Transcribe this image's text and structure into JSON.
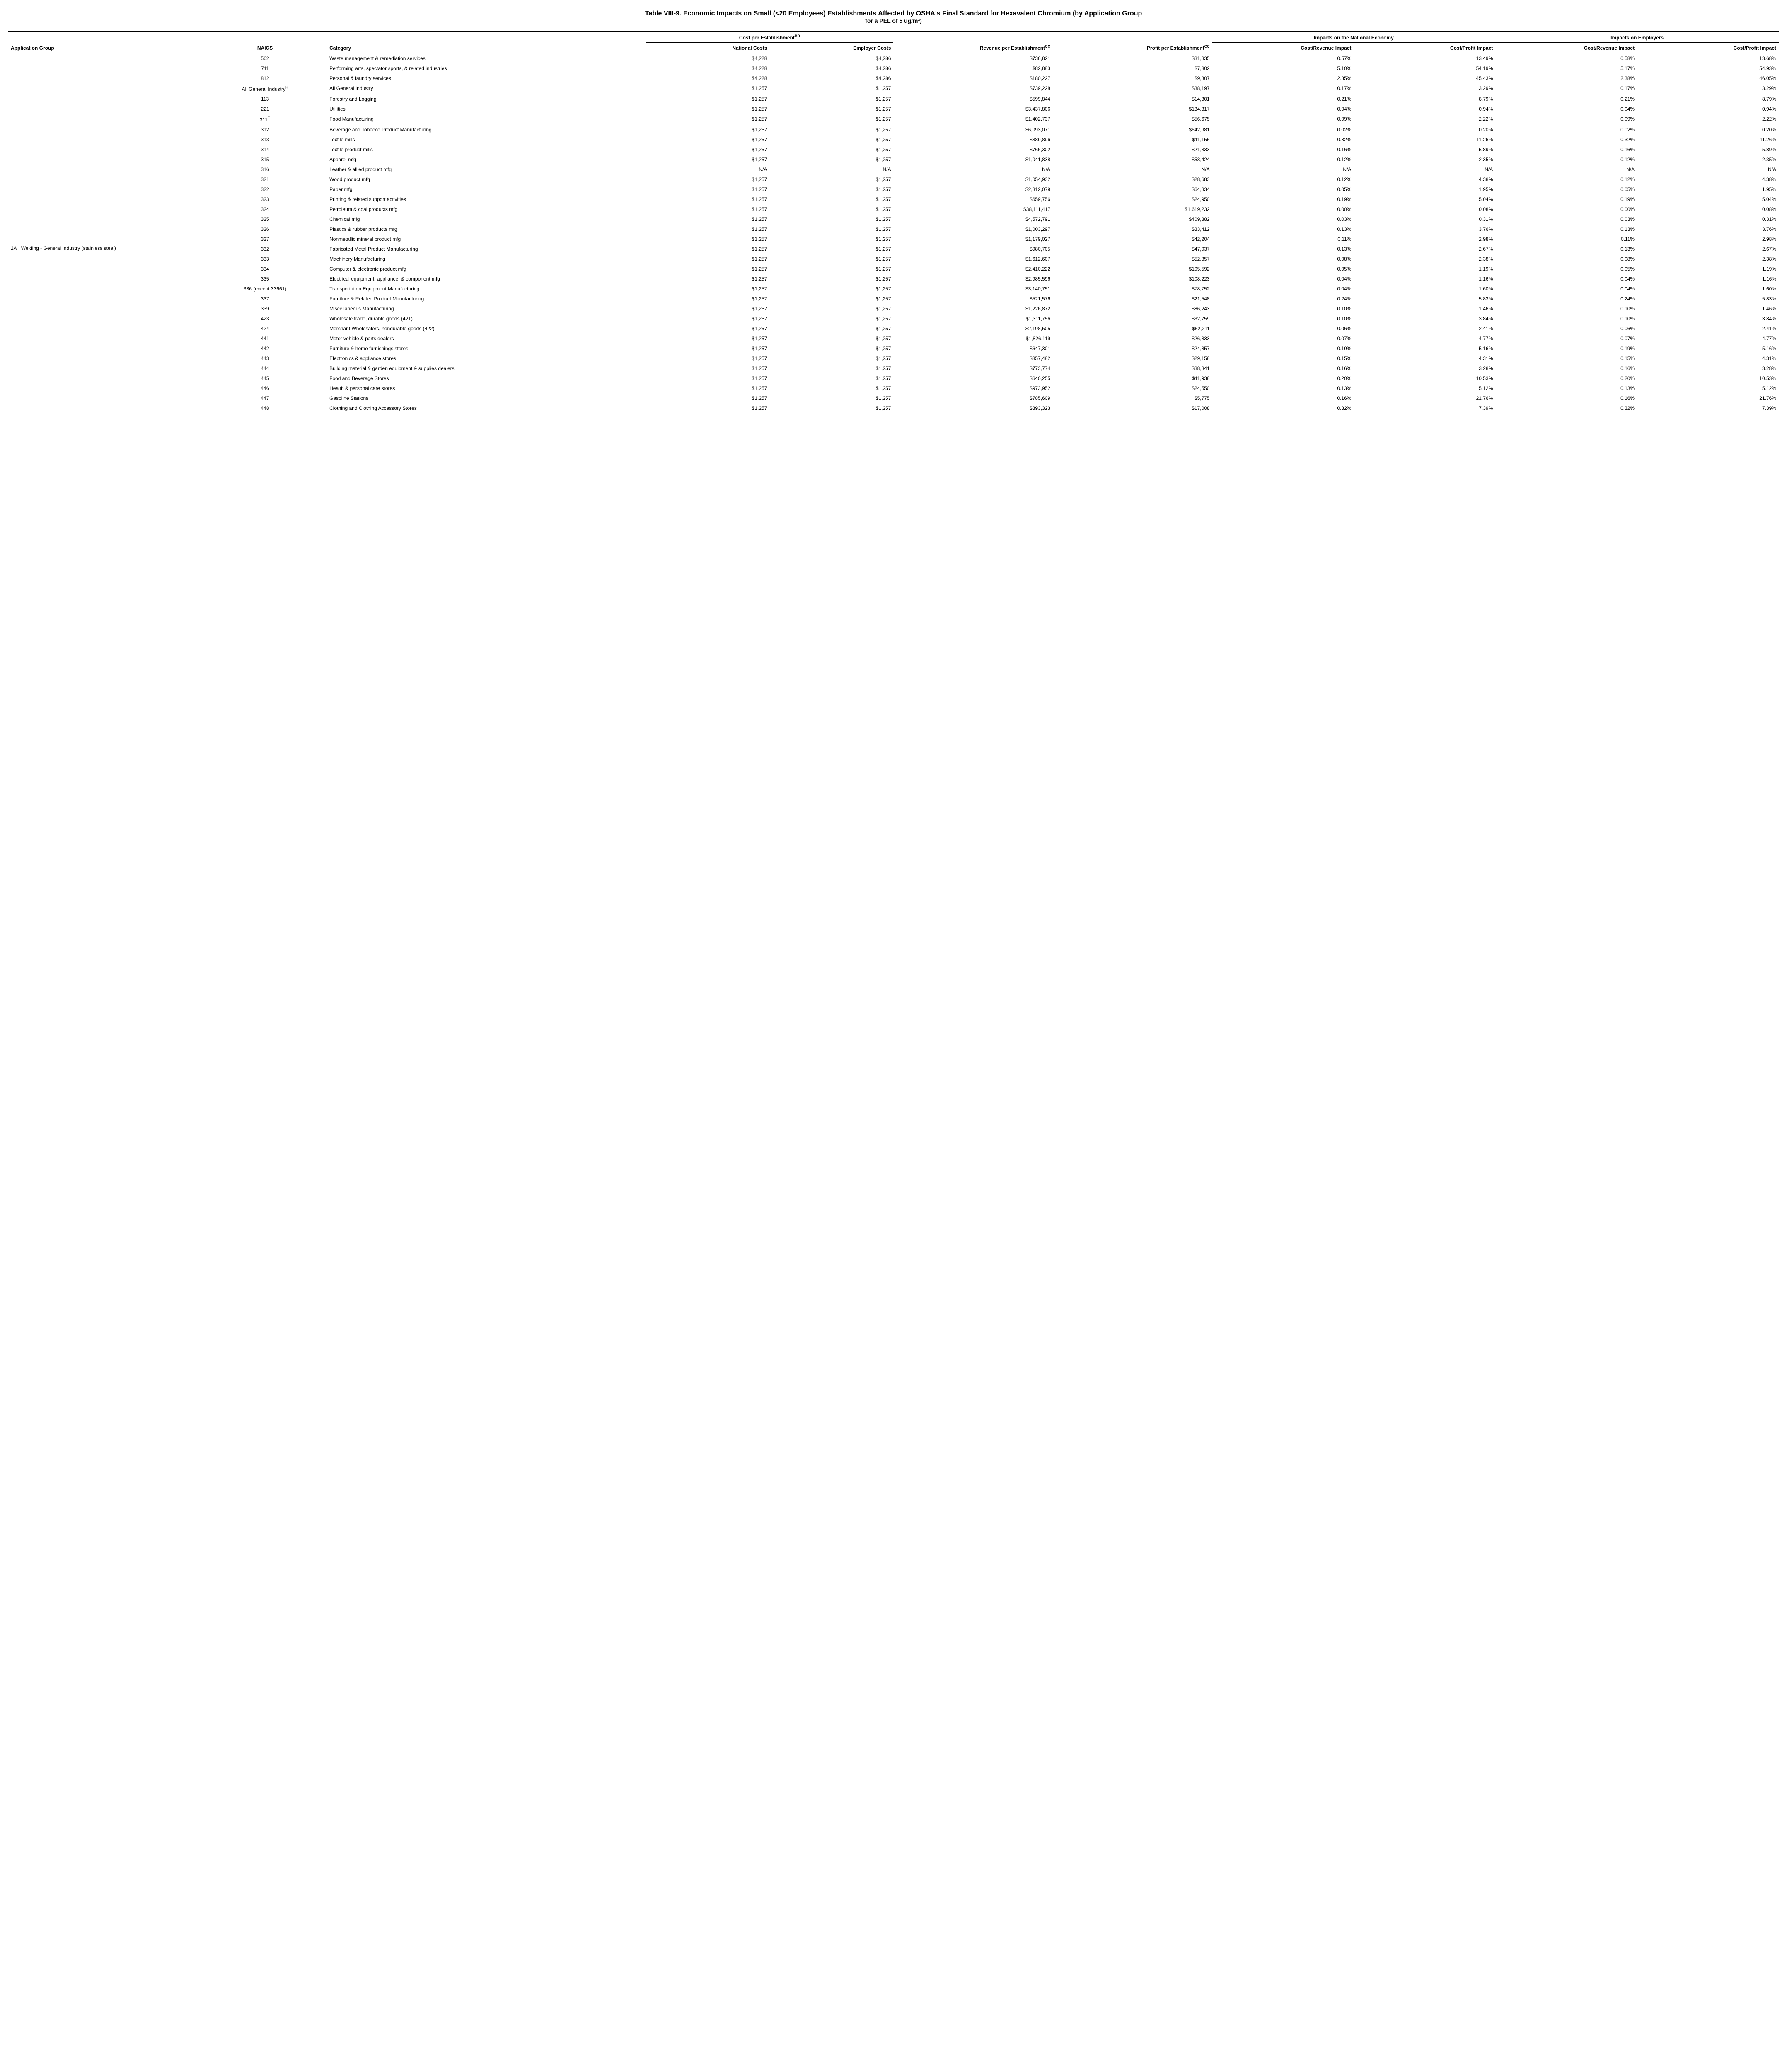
{
  "title_line1": "Table VIII-9.  Economic Impacts on Small (<20 Employees) Establishments Affected by OSHA's Final Standard for Hexavalent Chromium (by Application Group",
  "title_line2": "for a PEL of 5 ug/m³)",
  "group_headers": {
    "cost_est": "Cost per Establishment",
    "cost_est_sup": "BB",
    "rev_est": "Revenue per Establishment",
    "rev_est_sup": "CC",
    "profit_est": "Profit per Establishment",
    "profit_est_sup": "CC",
    "nat_econ": "Impacts on the National Economy",
    "emp": "Impacts on Employers"
  },
  "col_headers": {
    "app_group": "Application Group",
    "naics": "NAICS",
    "category": "Category",
    "nat_costs": "National Costs",
    "emp_costs": "Employer Costs",
    "rev": "Revenue per Establishment",
    "profit": "Profit per Establishment",
    "cr1": "Cost/Revenue Impact",
    "cp1": "Cost/Profit Impact",
    "cr2": "Cost/Revenue Impact",
    "cp2": "Cost/Profit Impact"
  },
  "row_code": "2A",
  "app_group_label": "Welding - General Industry (stainless steel)",
  "all_gi_naics": "All General Industry",
  "all_gi_naics_sup": "H",
  "rows": [
    {
      "naics": "562",
      "cat": "Waste management & remediation services",
      "nc": "$4,228",
      "ec": "$4,286",
      "rev": "$736,821",
      "profit": "$31,335",
      "cr1": "0.57%",
      "cp1": "13.49%",
      "cr2": "0.58%",
      "cp2": "13.68%"
    },
    {
      "naics": "711",
      "cat": "Performing arts, spectator sports, & related industries",
      "nc": "$4,228",
      "ec": "$4,286",
      "rev": "$82,883",
      "profit": "$7,802",
      "cr1": "5.10%",
      "cp1": "54.19%",
      "cr2": "5.17%",
      "cp2": "54.93%"
    },
    {
      "naics": "812",
      "cat": "Personal & laundry services",
      "nc": "$4,228",
      "ec": "$4,286",
      "rev": "$180,227",
      "profit": "$9,307",
      "cr1": "2.35%",
      "cp1": "45.43%",
      "cr2": "2.38%",
      "cp2": "46.05%"
    },
    {
      "is_all_gi": true,
      "cat": "All General Industry",
      "nc": "$1,257",
      "ec": "$1,257",
      "rev": "$739,228",
      "profit": "$38,197",
      "cr1": "0.17%",
      "cp1": "3.29%",
      "cr2": "0.17%",
      "cp2": "3.29%"
    },
    {
      "naics": "113",
      "cat": "Forestry and Logging",
      "nc": "$1,257",
      "ec": "$1,257",
      "rev": "$599,844",
      "profit": "$14,301",
      "cr1": "0.21%",
      "cp1": "8.79%",
      "cr2": "0.21%",
      "cp2": "8.79%"
    },
    {
      "naics": "221",
      "cat": "Utilities",
      "nc": "$1,257",
      "ec": "$1,257",
      "rev": "$3,437,806",
      "profit": "$134,317",
      "cr1": "0.04%",
      "cp1": "0.94%",
      "cr2": "0.04%",
      "cp2": "0.94%"
    },
    {
      "naics": "311",
      "naics_sup": "C",
      "cat": "Food Manufacturing",
      "nc": "$1,257",
      "ec": "$1,257",
      "rev": "$1,402,737",
      "profit": "$56,675",
      "cr1": "0.09%",
      "cp1": "2.22%",
      "cr2": "0.09%",
      "cp2": "2.22%"
    },
    {
      "naics": "312",
      "cat": "Beverage and Tobacco Product Manufacturing",
      "nc": "$1,257",
      "ec": "$1,257",
      "rev": "$6,093,071",
      "profit": "$642,981",
      "cr1": "0.02%",
      "cp1": "0.20%",
      "cr2": "0.02%",
      "cp2": "0.20%"
    },
    {
      "naics": "313",
      "cat": "Textile mills",
      "nc": "$1,257",
      "ec": "$1,257",
      "rev": "$389,896",
      "profit": "$11,155",
      "cr1": "0.32%",
      "cp1": "11.26%",
      "cr2": "0.32%",
      "cp2": "11.26%"
    },
    {
      "naics": "314",
      "cat": "Textile product mills",
      "nc": "$1,257",
      "ec": "$1,257",
      "rev": "$766,302",
      "profit": "$21,333",
      "cr1": "0.16%",
      "cp1": "5.89%",
      "cr2": "0.16%",
      "cp2": "5.89%"
    },
    {
      "naics": "315",
      "cat": "Apparel mfg",
      "nc": "$1,257",
      "ec": "$1,257",
      "rev": "$1,041,838",
      "profit": "$53,424",
      "cr1": "0.12%",
      "cp1": "2.35%",
      "cr2": "0.12%",
      "cp2": "2.35%"
    },
    {
      "naics": "316",
      "cat": "Leather & allied product mfg",
      "nc": "N/A",
      "ec": "N/A",
      "rev": "N/A",
      "profit": "N/A",
      "cr1": "N/A",
      "cp1": "N/A",
      "cr2": "N/A",
      "cp2": "N/A"
    },
    {
      "naics": "321",
      "cat": "Wood product mfg",
      "nc": "$1,257",
      "ec": "$1,257",
      "rev": "$1,054,932",
      "profit": "$28,683",
      "cr1": "0.12%",
      "cp1": "4.38%",
      "cr2": "0.12%",
      "cp2": "4.38%"
    },
    {
      "naics": "322",
      "cat": "Paper mfg",
      "nc": "$1,257",
      "ec": "$1,257",
      "rev": "$2,312,079",
      "profit": "$64,334",
      "cr1": "0.05%",
      "cp1": "1.95%",
      "cr2": "0.05%",
      "cp2": "1.95%"
    },
    {
      "naics": "323",
      "cat": "Printing & related support activities",
      "nc": "$1,257",
      "ec": "$1,257",
      "rev": "$659,756",
      "profit": "$24,950",
      "cr1": "0.19%",
      "cp1": "5.04%",
      "cr2": "0.19%",
      "cp2": "5.04%"
    },
    {
      "naics": "324",
      "cat": "Petroleum & coal products mfg",
      "nc": "$1,257",
      "ec": "$1,257",
      "rev": "$38,111,417",
      "profit": "$1,619,232",
      "cr1": "0.00%",
      "cp1": "0.08%",
      "cr2": "0.00%",
      "cp2": "0.08%"
    },
    {
      "naics": "325",
      "cat": "Chemical mfg",
      "nc": "$1,257",
      "ec": "$1,257",
      "rev": "$4,572,791",
      "profit": "$409,882",
      "cr1": "0.03%",
      "cp1": "0.31%",
      "cr2": "0.03%",
      "cp2": "0.31%"
    },
    {
      "naics": "326",
      "cat": "Plastics & rubber products mfg",
      "nc": "$1,257",
      "ec": "$1,257",
      "rev": "$1,003,297",
      "profit": "$33,412",
      "cr1": "0.13%",
      "cp1": "3.76%",
      "cr2": "0.13%",
      "cp2": "3.76%"
    },
    {
      "naics": "327",
      "cat": "Nonmetallic mineral product mfg",
      "nc": "$1,257",
      "ec": "$1,257",
      "rev": "$1,179,027",
      "profit": "$42,204",
      "cr1": "0.11%",
      "cp1": "2.98%",
      "cr2": "0.11%",
      "cp2": "2.98%"
    },
    {
      "naics": "332",
      "cat": "Fabricated Metal Product Manufacturing",
      "nc": "$1,257",
      "ec": "$1,257",
      "rev": "$980,705",
      "profit": "$47,037",
      "cr1": "0.13%",
      "cp1": "2.67%",
      "cr2": "0.13%",
      "cp2": "2.67%"
    },
    {
      "naics": "333",
      "cat": "Machinery Manufacturing",
      "nc": "$1,257",
      "ec": "$1,257",
      "rev": "$1,612,607",
      "profit": "$52,857",
      "cr1": "0.08%",
      "cp1": "2.38%",
      "cr2": "0.08%",
      "cp2": "2.38%"
    },
    {
      "naics": "334",
      "cat": "Computer & electronic product mfg",
      "nc": "$1,257",
      "ec": "$1,257",
      "rev": "$2,410,222",
      "profit": "$105,592",
      "cr1": "0.05%",
      "cp1": "1.19%",
      "cr2": "0.05%",
      "cp2": "1.19%"
    },
    {
      "naics": "335",
      "cat": "Electrical equipment, appliance, & component mfg",
      "nc": "$1,257",
      "ec": "$1,257",
      "rev": "$2,985,596",
      "profit": "$108,223",
      "cr1": "0.04%",
      "cp1": "1.16%",
      "cr2": "0.04%",
      "cp2": "1.16%"
    },
    {
      "naics": "336 (except 33661)",
      "cat": "Transportation Equipment Manufacturing",
      "nc": "$1,257",
      "ec": "$1,257",
      "rev": "$3,140,751",
      "profit": "$78,752",
      "cr1": "0.04%",
      "cp1": "1.60%",
      "cr2": "0.04%",
      "cp2": "1.60%"
    },
    {
      "naics": "337",
      "cat": "Furniture & Related Product Manufacturing",
      "nc": "$1,257",
      "ec": "$1,257",
      "rev": "$521,576",
      "profit": "$21,548",
      "cr1": "0.24%",
      "cp1": "5.83%",
      "cr2": "0.24%",
      "cp2": "5.83%"
    },
    {
      "naics": "339",
      "cat": "Miscellaneous Manufacturing",
      "nc": "$1,257",
      "ec": "$1,257",
      "rev": "$1,226,872",
      "profit": "$86,243",
      "cr1": "0.10%",
      "cp1": "1.46%",
      "cr2": "0.10%",
      "cp2": "1.46%"
    },
    {
      "naics": "423",
      "cat": "Wholesale trade, durable goods (421)",
      "nc": "$1,257",
      "ec": "$1,257",
      "rev": "$1,311,756",
      "profit": "$32,759",
      "cr1": "0.10%",
      "cp1": "3.84%",
      "cr2": "0.10%",
      "cp2": "3.84%"
    },
    {
      "naics": "424",
      "cat": "Merchant Wholesalers, nondurable goods (422)",
      "nc": "$1,257",
      "ec": "$1,257",
      "rev": "$2,198,505",
      "profit": "$52,211",
      "cr1": "0.06%",
      "cp1": "2.41%",
      "cr2": "0.06%",
      "cp2": "2.41%"
    },
    {
      "naics": "441",
      "cat": "Motor vehicle & parts dealers",
      "nc": "$1,257",
      "ec": "$1,257",
      "rev": "$1,826,119",
      "profit": "$26,333",
      "cr1": "0.07%",
      "cp1": "4.77%",
      "cr2": "0.07%",
      "cp2": "4.77%"
    },
    {
      "naics": "442",
      "cat": "Furniture & home furnishings stores",
      "nc": "$1,257",
      "ec": "$1,257",
      "rev": "$647,301",
      "profit": "$24,357",
      "cr1": "0.19%",
      "cp1": "5.16%",
      "cr2": "0.19%",
      "cp2": "5.16%"
    },
    {
      "naics": "443",
      "cat": "Electronics & appliance stores",
      "nc": "$1,257",
      "ec": "$1,257",
      "rev": "$857,482",
      "profit": "$29,158",
      "cr1": "0.15%",
      "cp1": "4.31%",
      "cr2": "0.15%",
      "cp2": "4.31%"
    },
    {
      "naics": "444",
      "cat": "Building material & garden equipment & supplies dealers",
      "nc": "$1,257",
      "ec": "$1,257",
      "rev": "$773,774",
      "profit": "$38,341",
      "cr1": "0.16%",
      "cp1": "3.28%",
      "cr2": "0.16%",
      "cp2": "3.28%"
    },
    {
      "naics": "445",
      "cat": "Food and Beverage Stores",
      "nc": "$1,257",
      "ec": "$1,257",
      "rev": "$640,255",
      "profit": "$11,938",
      "cr1": "0.20%",
      "cp1": "10.53%",
      "cr2": "0.20%",
      "cp2": "10.53%"
    },
    {
      "naics": "446",
      "cat": "Health & personal care stores",
      "nc": "$1,257",
      "ec": "$1,257",
      "rev": "$973,952",
      "profit": "$24,550",
      "cr1": "0.13%",
      "cp1": "5.12%",
      "cr2": "0.13%",
      "cp2": "5.12%"
    },
    {
      "naics": "447",
      "cat": "Gasoline Stations",
      "nc": "$1,257",
      "ec": "$1,257",
      "rev": "$785,609",
      "profit": "$5,775",
      "cr1": "0.16%",
      "cp1": "21.76%",
      "cr2": "0.16%",
      "cp2": "21.76%"
    },
    {
      "naics": "448",
      "cat": "Clothing and Clothing Accessory Stores",
      "nc": "$1,257",
      "ec": "$1,257",
      "rev": "$393,323",
      "profit": "$17,008",
      "cr1": "0.32%",
      "cp1": "7.39%",
      "cr2": "0.32%",
      "cp2": "7.39%"
    }
  ],
  "colwidths": {
    "appgrp": "11%",
    "naics": "7%",
    "cat": "18%",
    "nc": "7%",
    "ec": "7%",
    "rev": "9%",
    "profit": "9%",
    "cr1": "8%",
    "cp1": "8%",
    "cr2": "8%",
    "cp2": "8%"
  }
}
